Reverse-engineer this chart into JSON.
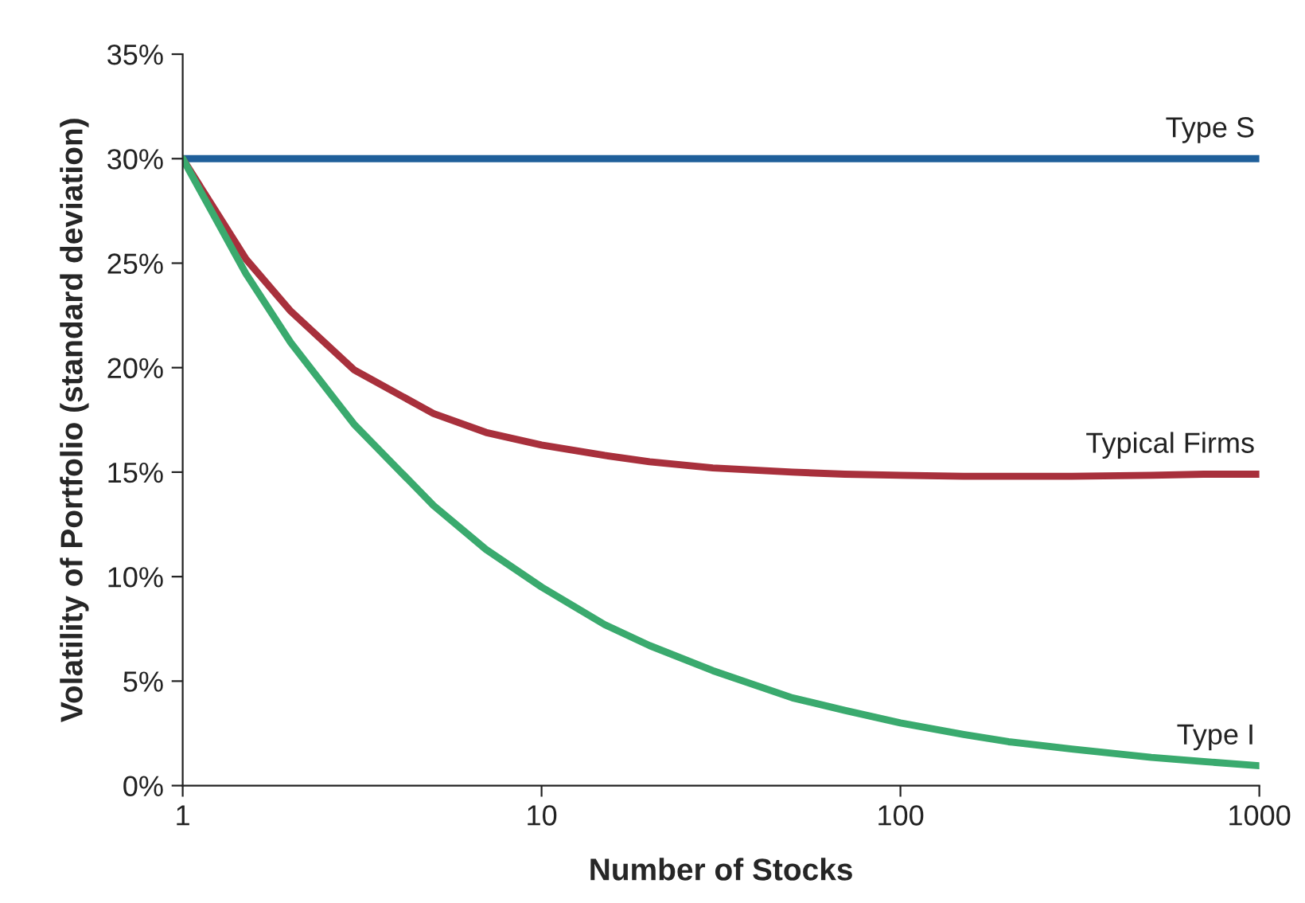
{
  "chart_data": {
    "type": "line",
    "xlabel": "Number of Stocks",
    "ylabel": "Volatility of Portfolio (standard deviation)",
    "log": "x",
    "xlim": [
      1,
      1000
    ],
    "xticks": [
      1,
      10,
      100,
      1000
    ],
    "ylim": [
      0,
      35
    ],
    "yticks": [
      {
        "value": 0,
        "label": "0%"
      },
      {
        "value": 5,
        "label": "5%"
      },
      {
        "value": 10,
        "label": "10%"
      },
      {
        "value": 15,
        "label": "15%"
      },
      {
        "value": 20,
        "label": "20%"
      },
      {
        "value": 25,
        "label": "25%"
      },
      {
        "value": 30,
        "label": "30%"
      },
      {
        "value": 35,
        "label": "35%"
      }
    ],
    "grid": false,
    "legend": false,
    "x": [
      1,
      1.5,
      2,
      3,
      5,
      7,
      10,
      15,
      20,
      30,
      50,
      70,
      100,
      150,
      200,
      300,
      500,
      700,
      1000
    ],
    "series": [
      {
        "name": "Type S",
        "color": "#1f5f9a",
        "values": [
          30,
          30,
          30,
          30,
          30,
          30,
          30,
          30,
          30,
          30,
          30,
          30,
          30,
          30,
          30,
          30,
          30,
          30,
          30
        ]
      },
      {
        "name": "Typical Firms",
        "color": "#a8303c",
        "values": [
          30,
          25.2,
          22.7,
          19.9,
          17.8,
          16.9,
          16.3,
          15.8,
          15.5,
          15.2,
          15.0,
          14.9,
          14.85,
          14.8,
          14.8,
          14.8,
          14.85,
          14.9,
          14.9
        ]
      },
      {
        "name": "Type I",
        "color": "#3aaa6e",
        "values": [
          30,
          24.5,
          21.2,
          17.3,
          13.4,
          11.3,
          9.5,
          7.7,
          6.7,
          5.5,
          4.2,
          3.6,
          3.0,
          2.45,
          2.1,
          1.75,
          1.35,
          1.15,
          0.95
        ]
      }
    ]
  }
}
